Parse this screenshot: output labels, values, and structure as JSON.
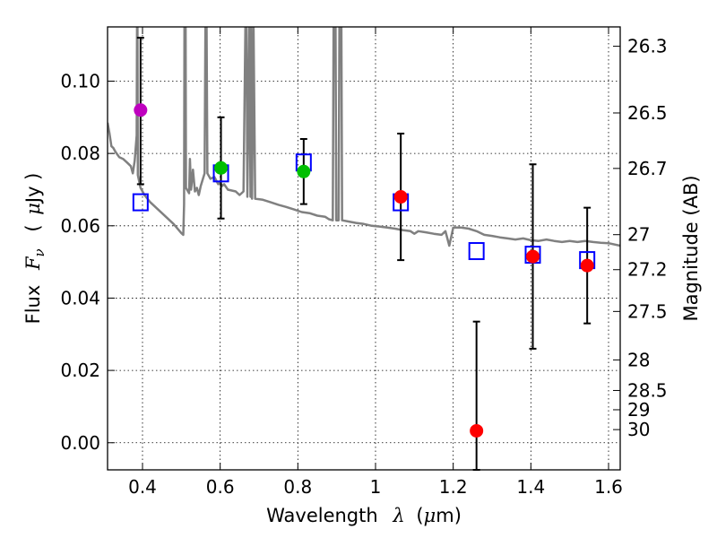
{
  "chart_data": {
    "type": "scatter",
    "xlabel": {
      "main": "Wavelength",
      "symbol": "λ",
      "unit_open": "(",
      "unit_mu": "μ",
      "unit_rest": "m)"
    },
    "ylabel": {
      "main": "Flux",
      "symbol": "F",
      "subscript": "ν",
      "unit_open": "(",
      "unit_mu": "μ",
      "unit_rest": "Jy )"
    },
    "y2label": "Magnitude (AB)",
    "xlim": [
      0.31,
      1.63
    ],
    "ylim": [
      -0.0075,
      0.115
    ],
    "grid": true,
    "x_ticks": [
      0.4,
      0.6,
      0.8,
      1.0,
      1.2,
      1.4,
      1.6
    ],
    "x_tick_labels": [
      "0.4",
      "0.6",
      "0.8",
      "1",
      "1.2",
      "1.4",
      "1.6"
    ],
    "y_ticks": [
      0.0,
      0.02,
      0.04,
      0.06,
      0.08,
      0.1
    ],
    "y_tick_labels": [
      "0.00",
      "0.02",
      "0.04",
      "0.06",
      "0.08",
      "0.10"
    ],
    "mag_ticks": [
      {
        "mag": 26.3,
        "label": "26.3"
      },
      {
        "mag": 26.5,
        "label": "26.5"
      },
      {
        "mag": 26.7,
        "label": "26.7"
      },
      {
        "mag": 27.0,
        "label": "27"
      },
      {
        "mag": 27.2,
        "label": "27.2"
      },
      {
        "mag": 27.5,
        "label": "27.5"
      },
      {
        "mag": 28.0,
        "label": "28"
      },
      {
        "mag": 28.5,
        "label": "28.5"
      },
      {
        "mag": 29.0,
        "label": "29"
      },
      {
        "mag": 30.0,
        "label": "30"
      }
    ],
    "model_points": [
      {
        "x": 0.395,
        "y": 0.0665
      },
      {
        "x": 0.602,
        "y": 0.0745
      },
      {
        "x": 0.815,
        "y": 0.0775
      },
      {
        "x": 1.065,
        "y": 0.0665
      },
      {
        "x": 1.26,
        "y": 0.053
      },
      {
        "x": 1.405,
        "y": 0.052
      },
      {
        "x": 1.545,
        "y": 0.0505
      }
    ],
    "observed_points": [
      {
        "x": 0.395,
        "y": 0.092,
        "yerr_low": 0.0715,
        "yerr_high": 0.112,
        "color": "#bf00bf"
      },
      {
        "x": 0.602,
        "y": 0.076,
        "yerr_low": 0.062,
        "yerr_high": 0.09,
        "color": "#00bf00"
      },
      {
        "x": 0.815,
        "y": 0.075,
        "yerr_low": 0.066,
        "yerr_high": 0.084,
        "color": "#00bf00"
      },
      {
        "x": 1.065,
        "y": 0.068,
        "yerr_low": 0.0505,
        "yerr_high": 0.0855,
        "color": "#ff0000"
      },
      {
        "x": 1.26,
        "y": 0.0033,
        "yerr_low": -0.0075,
        "yerr_high": 0.0335,
        "color": "#ff0000"
      },
      {
        "x": 1.405,
        "y": 0.0515,
        "yerr_low": 0.026,
        "yerr_high": 0.077,
        "color": "#ff0000"
      },
      {
        "x": 1.545,
        "y": 0.049,
        "yerr_low": 0.033,
        "yerr_high": 0.065,
        "color": "#ff0000"
      }
    ],
    "sed_curve": {
      "color": "#808080",
      "points": [
        [
          0.31,
          0.0885
        ],
        [
          0.315,
          0.0855
        ],
        [
          0.32,
          0.082
        ],
        [
          0.325,
          0.0815
        ],
        [
          0.33,
          0.0805
        ],
        [
          0.34,
          0.079
        ],
        [
          0.35,
          0.0785
        ],
        [
          0.36,
          0.0775
        ],
        [
          0.37,
          0.0765
        ],
        [
          0.375,
          0.0745
        ],
        [
          0.38,
          0.078
        ],
        [
          0.385,
          0.085
        ],
        [
          0.386,
          0.115
        ],
        [
          0.387,
          0.115
        ],
        [
          0.388,
          0.074
        ],
        [
          0.395,
          0.0705
        ],
        [
          0.405,
          0.0685
        ],
        [
          0.42,
          0.0665
        ],
        [
          0.44,
          0.0645
        ],
        [
          0.46,
          0.0625
        ],
        [
          0.48,
          0.0605
        ],
        [
          0.5,
          0.058
        ],
        [
          0.505,
          0.0575
        ],
        [
          0.507,
          0.066
        ],
        [
          0.508,
          0.115
        ],
        [
          0.511,
          0.115
        ],
        [
          0.512,
          0.0705
        ],
        [
          0.52,
          0.069
        ],
        [
          0.522,
          0.0785
        ],
        [
          0.525,
          0.07
        ],
        [
          0.53,
          0.0755
        ],
        [
          0.535,
          0.0695
        ],
        [
          0.54,
          0.0705
        ],
        [
          0.545,
          0.0685
        ],
        [
          0.55,
          0.071
        ],
        [
          0.56,
          0.0745
        ],
        [
          0.562,
          0.115
        ],
        [
          0.565,
          0.115
        ],
        [
          0.567,
          0.0745
        ],
        [
          0.575,
          0.073
        ],
        [
          0.585,
          0.0735
        ],
        [
          0.595,
          0.0715
        ],
        [
          0.6,
          0.072
        ],
        [
          0.605,
          0.071
        ],
        [
          0.61,
          0.0715
        ],
        [
          0.62,
          0.07
        ],
        [
          0.64,
          0.0695
        ],
        [
          0.65,
          0.0685
        ],
        [
          0.66,
          0.0695
        ],
        [
          0.665,
          0.115
        ],
        [
          0.668,
          0.115
        ],
        [
          0.67,
          0.068
        ],
        [
          0.675,
          0.115
        ],
        [
          0.678,
          0.068
        ],
        [
          0.68,
          0.115
        ],
        [
          0.682,
          0.0675
        ],
        [
          0.686,
          0.115
        ],
        [
          0.69,
          0.0675
        ],
        [
          0.71,
          0.0672
        ],
        [
          0.73,
          0.0665
        ],
        [
          0.75,
          0.0658
        ],
        [
          0.77,
          0.0652
        ],
        [
          0.79,
          0.0645
        ],
        [
          0.81,
          0.0638
        ],
        [
          0.83,
          0.0635
        ],
        [
          0.85,
          0.0628
        ],
        [
          0.87,
          0.0625
        ],
        [
          0.88,
          0.0618
        ],
        [
          0.89,
          0.0615
        ],
        [
          0.892,
          0.115
        ],
        [
          0.897,
          0.115
        ],
        [
          0.899,
          0.0615
        ],
        [
          0.905,
          0.0615
        ],
        [
          0.907,
          0.115
        ],
        [
          0.912,
          0.115
        ],
        [
          0.914,
          0.0615
        ],
        [
          0.93,
          0.0612
        ],
        [
          0.95,
          0.0608
        ],
        [
          0.97,
          0.0605
        ],
        [
          0.99,
          0.06
        ],
        [
          1.01,
          0.0598
        ],
        [
          1.03,
          0.0595
        ],
        [
          1.05,
          0.0592
        ],
        [
          1.07,
          0.0588
        ],
        [
          1.09,
          0.0585
        ],
        [
          1.1,
          0.0578
        ],
        [
          1.11,
          0.0585
        ],
        [
          1.13,
          0.0582
        ],
        [
          1.15,
          0.0578
        ],
        [
          1.17,
          0.0575
        ],
        [
          1.18,
          0.0585
        ],
        [
          1.19,
          0.0545
        ],
        [
          1.2,
          0.0595
        ],
        [
          1.22,
          0.0595
        ],
        [
          1.24,
          0.0592
        ],
        [
          1.26,
          0.0585
        ],
        [
          1.28,
          0.0575
        ],
        [
          1.3,
          0.0572
        ],
        [
          1.32,
          0.0568
        ],
        [
          1.34,
          0.0565
        ],
        [
          1.36,
          0.0562
        ],
        [
          1.38,
          0.0565
        ],
        [
          1.4,
          0.056
        ],
        [
          1.42,
          0.0558
        ],
        [
          1.44,
          0.0562
        ],
        [
          1.46,
          0.0558
        ],
        [
          1.48,
          0.0555
        ],
        [
          1.5,
          0.0558
        ],
        [
          1.52,
          0.0555
        ],
        [
          1.54,
          0.0558
        ],
        [
          1.56,
          0.0555
        ],
        [
          1.58,
          0.0553
        ],
        [
          1.6,
          0.0552
        ],
        [
          1.63,
          0.0545
        ]
      ]
    }
  }
}
